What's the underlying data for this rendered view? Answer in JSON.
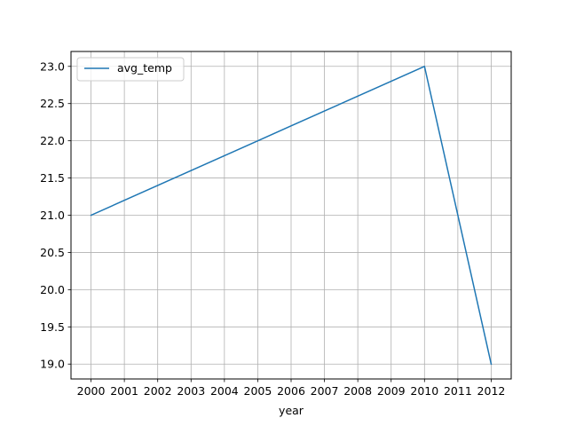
{
  "chart_data": {
    "type": "line",
    "title": "",
    "xlabel": "year",
    "ylabel": "",
    "x": [
      "2000",
      "2001",
      "2002",
      "2003",
      "2004",
      "2005",
      "2006",
      "2007",
      "2008",
      "2009",
      "2010",
      "2011",
      "2012"
    ],
    "series": [
      {
        "name": "avg_temp",
        "color": "#1f77b4",
        "values": [
          21.0,
          21.2,
          21.4,
          21.6,
          21.8,
          22.0,
          22.2,
          22.4,
          22.6,
          22.8,
          23.0,
          21.0,
          19.0
        ]
      }
    ],
    "yticks": [
      "19.0",
      "19.5",
      "20.0",
      "20.5",
      "21.0",
      "21.5",
      "22.0",
      "22.5",
      "23.0"
    ],
    "xlim": [
      "1999.4",
      "2012.6"
    ],
    "ylim": [
      18.8,
      23.2
    ],
    "grid": true,
    "legend_position": "upper-left"
  }
}
